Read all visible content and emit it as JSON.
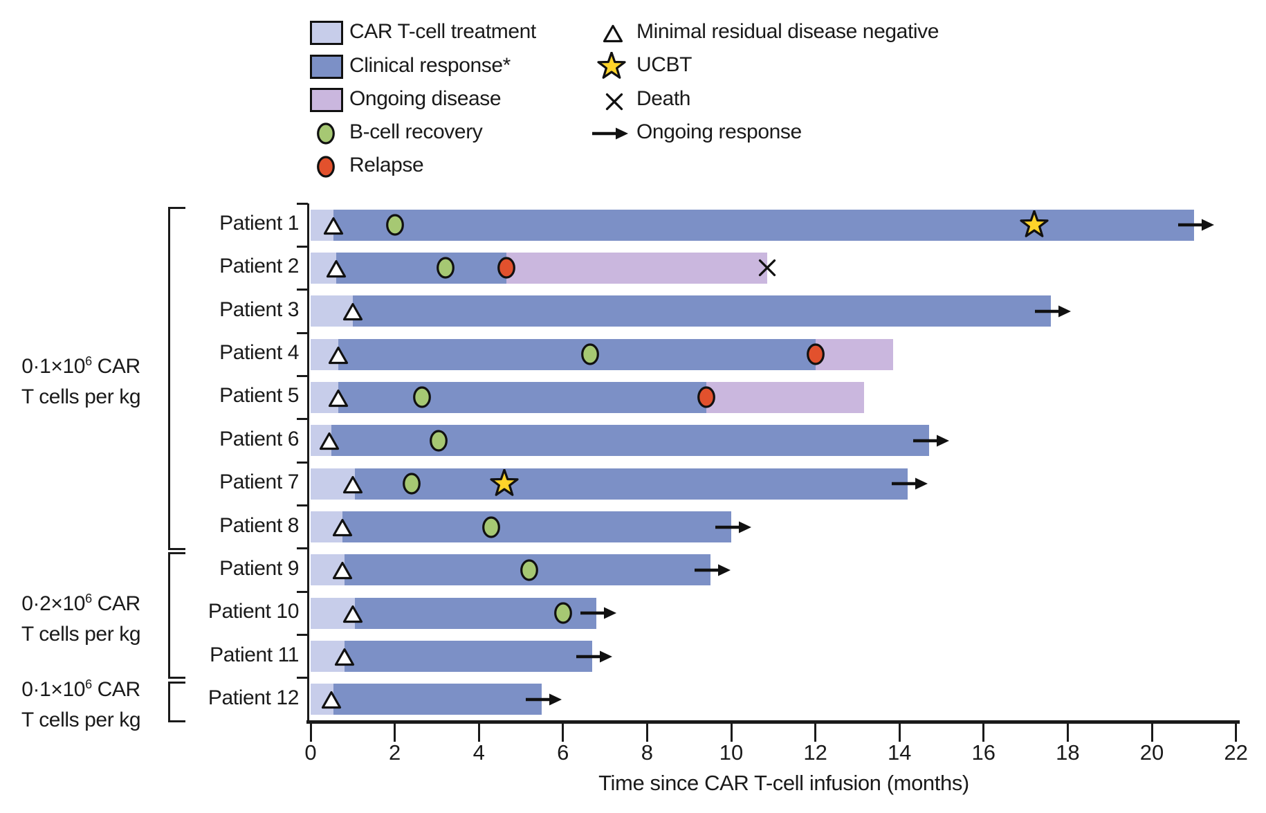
{
  "colors": {
    "treatment": "#c7cdea",
    "response": "#7c90c6",
    "ongoing_disease": "#cab7de",
    "b_cell_recovery": "#a6c873",
    "relapse": "#e2512d",
    "ucbt_star": "#ffd42a",
    "axis": "#1a1a1a",
    "marker_outline": "#111111",
    "triangle_fill": "#ffffff"
  },
  "legend": {
    "col1": [
      {
        "symbol": "swatch-treatment",
        "label": "CAR T-cell treatment"
      },
      {
        "symbol": "swatch-response",
        "label": "Clinical response*"
      },
      {
        "symbol": "swatch-ongoing-disease",
        "label": "Ongoing disease"
      },
      {
        "symbol": "circle-green",
        "label": "B-cell recovery"
      },
      {
        "symbol": "circle-red",
        "label": "Relapse"
      }
    ],
    "col2": [
      {
        "symbol": "triangle",
        "label": "Minimal residual disease negative"
      },
      {
        "symbol": "star",
        "label": "UCBT"
      },
      {
        "symbol": "cross",
        "label": "Death"
      },
      {
        "symbol": "arrow",
        "label": "Ongoing response"
      }
    ]
  },
  "chart_data": {
    "type": "bar",
    "subtype": "swimmer-plot",
    "xlabel": "Time since CAR T-cell infusion (months)",
    "xlim": [
      0,
      22
    ],
    "xticks": [
      0,
      2,
      4,
      6,
      8,
      10,
      12,
      14,
      16,
      18,
      20,
      22
    ],
    "grid": false,
    "groups": [
      {
        "line1_base": "0·1×10",
        "line1_sup": "6",
        "line1_rest": " CAR",
        "line2": "T cells per kg",
        "first_row": 0,
        "last_row": 7
      },
      {
        "line1_base": "0·2×10",
        "line1_sup": "6",
        "line1_rest": " CAR",
        "line2": "T cells per kg",
        "first_row": 8,
        "last_row": 10
      },
      {
        "line1_base": "0·1×10",
        "line1_sup": "6",
        "line1_rest": " CAR",
        "line2": "T cells per kg",
        "first_row": 11,
        "last_row": 11
      }
    ],
    "patients": [
      {
        "name": "Patient 1",
        "treatment_end": 0.55,
        "response_end": 21.0,
        "disease_end": null,
        "mrd_negative": 0.55,
        "b_cell_recovery": 2.0,
        "relapse": null,
        "ucbt": 17.2,
        "death": null,
        "ongoing": true
      },
      {
        "name": "Patient 2",
        "treatment_end": 0.6,
        "response_end": 4.65,
        "disease_end": 10.85,
        "mrd_negative": 0.6,
        "b_cell_recovery": 3.2,
        "relapse": 4.65,
        "ucbt": null,
        "death": 10.85,
        "ongoing": false
      },
      {
        "name": "Patient 3",
        "treatment_end": 1.0,
        "response_end": 17.6,
        "disease_end": null,
        "mrd_negative": 1.0,
        "b_cell_recovery": null,
        "relapse": null,
        "ucbt": null,
        "death": null,
        "ongoing": true
      },
      {
        "name": "Patient 4",
        "treatment_end": 0.65,
        "response_end": 12.0,
        "disease_end": 13.85,
        "mrd_negative": 0.65,
        "b_cell_recovery": 6.65,
        "relapse": 12.0,
        "ucbt": null,
        "death": null,
        "ongoing": false
      },
      {
        "name": "Patient 5",
        "treatment_end": 0.65,
        "response_end": 9.4,
        "disease_end": 13.15,
        "mrd_negative": 0.65,
        "b_cell_recovery": 2.65,
        "relapse": 9.4,
        "ucbt": null,
        "death": null,
        "ongoing": false
      },
      {
        "name": "Patient 6",
        "treatment_end": 0.5,
        "response_end": 14.7,
        "disease_end": null,
        "mrd_negative": 0.45,
        "b_cell_recovery": 3.05,
        "relapse": null,
        "ucbt": null,
        "death": null,
        "ongoing": true
      },
      {
        "name": "Patient 7",
        "treatment_end": 1.05,
        "response_end": 14.2,
        "disease_end": null,
        "mrd_negative": 1.0,
        "b_cell_recovery": 2.4,
        "relapse": null,
        "ucbt": 4.6,
        "death": null,
        "ongoing": true
      },
      {
        "name": "Patient 8",
        "treatment_end": 0.75,
        "response_end": 10.0,
        "disease_end": null,
        "mrd_negative": 0.75,
        "b_cell_recovery": 4.3,
        "relapse": null,
        "ucbt": null,
        "death": null,
        "ongoing": true
      },
      {
        "name": "Patient 9",
        "treatment_end": 0.8,
        "response_end": 9.5,
        "disease_end": null,
        "mrd_negative": 0.75,
        "b_cell_recovery": 5.2,
        "relapse": null,
        "ucbt": null,
        "death": null,
        "ongoing": true
      },
      {
        "name": "Patient 10",
        "treatment_end": 1.05,
        "response_end": 6.8,
        "disease_end": null,
        "mrd_negative": 1.0,
        "b_cell_recovery": 6.0,
        "relapse": null,
        "ucbt": null,
        "death": null,
        "ongoing": true
      },
      {
        "name": "Patient 11",
        "treatment_end": 0.8,
        "response_end": 6.7,
        "disease_end": null,
        "mrd_negative": 0.8,
        "b_cell_recovery": null,
        "relapse": null,
        "ucbt": null,
        "death": null,
        "ongoing": true
      },
      {
        "name": "Patient 12",
        "treatment_end": 0.55,
        "response_end": 5.5,
        "disease_end": null,
        "mrd_negative": 0.5,
        "b_cell_recovery": null,
        "relapse": null,
        "ucbt": null,
        "death": null,
        "ongoing": true
      }
    ]
  }
}
